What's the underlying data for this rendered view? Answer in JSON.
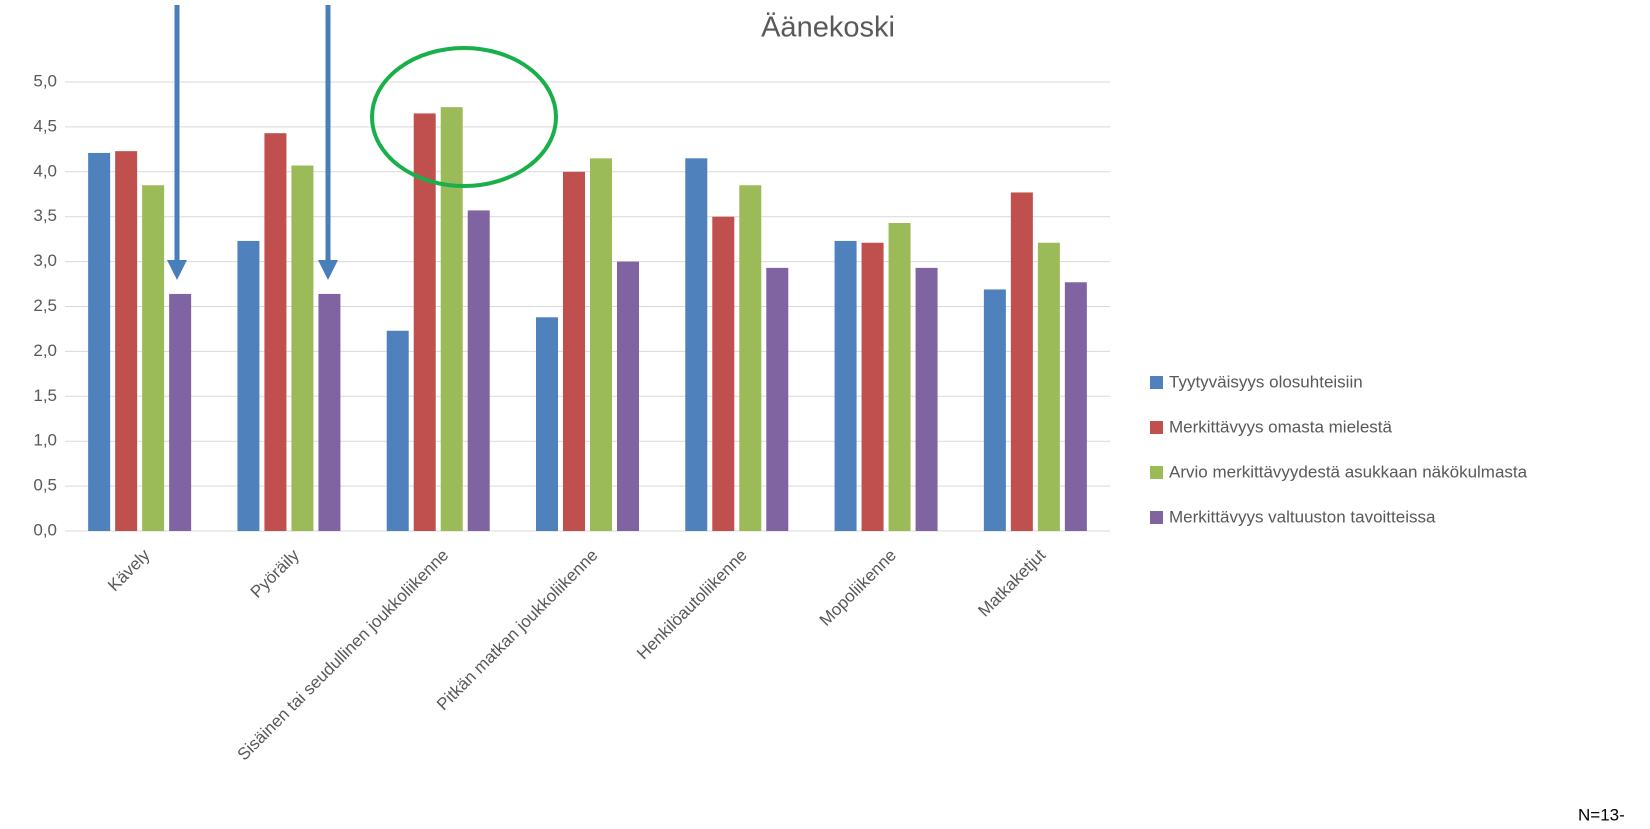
{
  "chart_data": {
    "type": "bar",
    "title": "Äänekoski",
    "categories": [
      "Kävely",
      "Pyöräily",
      "Sisäinen tai seudullinen joukkoliikenne",
      "Pitkän matkan joukkoliikenne",
      "Henkilöautoliikenne",
      "Mopoliikenne",
      "Matkaketjut"
    ],
    "series": [
      {
        "name": "Tyytyväisyys olosuhteisiin",
        "color": "#4f81bd",
        "values": [
          4.21,
          3.23,
          2.23,
          2.38,
          4.15,
          3.23,
          2.69
        ]
      },
      {
        "name": "Merkittävyys omasta mielestä",
        "color": "#c0504d",
        "values": [
          4.23,
          4.43,
          4.65,
          4.0,
          3.5,
          3.21,
          3.77
        ]
      },
      {
        "name": "Arvio merkittävyydestä asukkaan näkökulmasta",
        "color": "#9bbb59",
        "values": [
          3.85,
          4.07,
          4.72,
          4.15,
          3.85,
          3.43,
          3.21
        ]
      },
      {
        "name": "Merkittävyys valtuuston tavoitteissa",
        "color": "#8064a2",
        "values": [
          2.64,
          2.64,
          3.57,
          3.0,
          2.93,
          2.93,
          2.77
        ]
      }
    ],
    "ylim": [
      0,
      5
    ],
    "yticks": [
      {
        "value": 0,
        "label": "0,0"
      },
      {
        "value": 0.5,
        "label": "0,5"
      },
      {
        "value": 1,
        "label": "1,0"
      },
      {
        "value": 1.5,
        "label": "1,5"
      },
      {
        "value": 2,
        "label": "2,0"
      },
      {
        "value": 2.5,
        "label": "2,5"
      },
      {
        "value": 3,
        "label": "3,0"
      },
      {
        "value": 3.5,
        "label": "3,5"
      },
      {
        "value": 4,
        "label": "4,0"
      },
      {
        "value": 4.5,
        "label": "4,5"
      },
      {
        "value": 5,
        "label": "5,0"
      }
    ],
    "grid": true,
    "legend": "right",
    "note": "N=13-"
  }
}
